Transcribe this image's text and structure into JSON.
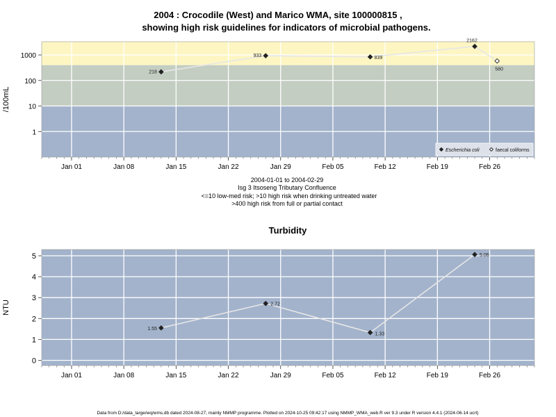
{
  "page": {
    "title_line1": "2004 : Crocodile (West) and Marico WMA, site 100000815 ,",
    "title_line2": "showing high risk guidelines for indicators of microbial pathogens.",
    "footer": "Data from D:/data_large/wq/wms.db dated 2024-08-27, mainly NMMP programme. Plotted on 2024-10-25 09:42:17 using NMMP_WMA_web.R ver 9.3 under R version 4.4.1 (2024-06-14 ucrt)"
  },
  "chart_data": [
    {
      "type": "line",
      "title": "",
      "ylabel": "/100mL",
      "y_scale": "log",
      "y_ticks": [
        1,
        10,
        100,
        1000
      ],
      "ylim": [
        0.1,
        3300
      ],
      "xlim": [
        "2003-12-28",
        "2004-03-03"
      ],
      "x_tick_dates": [
        "2004-01-01",
        "2004-01-08",
        "2004-01-15",
        "2004-01-22",
        "2004-01-29",
        "2004-02-05",
        "2004-02-12",
        "2004-02-19",
        "2004-02-26"
      ],
      "x_tick_labels": [
        "Jan 01",
        "Jan 08",
        "Jan 15",
        "Jan 22",
        "Jan 29",
        "Feb 05",
        "Feb 12",
        "Feb 19",
        "Feb 26"
      ],
      "grid": true,
      "risk_bands": [
        {
          "from": 0.1,
          "to": 10,
          "color": "#a3b3cc"
        },
        {
          "from": 10,
          "to": 400,
          "color": "#c4cdc2"
        },
        {
          "from": 400,
          "to": 3300,
          "color": "#fdf6c3"
        }
      ],
      "legend_position": "bottom-right",
      "series": [
        {
          "name": "Escherichia coli",
          "marker": "filled-diamond",
          "x": [
            "2004-01-13",
            "2004-01-27",
            "2004-02-10",
            "2004-02-24"
          ],
          "y": [
            218,
            933,
            839,
            2162
          ],
          "labels": [
            "218",
            "933",
            "839",
            "2162"
          ]
        },
        {
          "name": "faecal coliforms",
          "marker": "open-diamond",
          "x": [
            "2004-02-27"
          ],
          "y": [
            580
          ],
          "labels": [
            "580"
          ]
        }
      ],
      "annotations": [
        "2004-01-01 to 2004-02-29",
        "Isg 3 Itsoseng Tributary Confluence",
        "<=10 low-med risk; >10 high risk when drinking untreated water",
        ">400 high risk from full or partial contact"
      ]
    },
    {
      "type": "line",
      "title": "Turbidity",
      "ylabel": "NTU",
      "ylim": [
        -0.25,
        5.3
      ],
      "y_ticks": [
        0,
        1,
        2,
        3,
        4,
        5
      ],
      "xlim": [
        "2003-12-28",
        "2004-03-03"
      ],
      "x_tick_dates": [
        "2004-01-01",
        "2004-01-08",
        "2004-01-15",
        "2004-01-22",
        "2004-01-29",
        "2004-02-05",
        "2004-02-12",
        "2004-02-19",
        "2004-02-26"
      ],
      "x_tick_labels": [
        "Jan 01",
        "Jan 08",
        "Jan 15",
        "Jan 22",
        "Jan 29",
        "Feb 05",
        "Feb 12",
        "Feb 19",
        "Feb 26"
      ],
      "grid": true,
      "background": "#a3b3cc",
      "series": [
        {
          "name": "",
          "marker": "filled-diamond",
          "x": [
            "2004-01-13",
            "2004-01-27",
            "2004-02-10",
            "2004-02-24"
          ],
          "y": [
            1.55,
            2.72,
            1.33,
            5.06
          ],
          "labels": [
            "1.55",
            "2.72",
            "1.33",
            "5.06"
          ]
        }
      ]
    }
  ]
}
